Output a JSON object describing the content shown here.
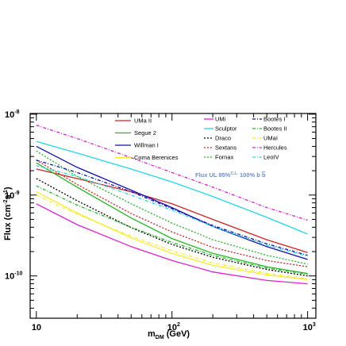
{
  "chart_data": {
    "type": "line",
    "title": "",
    "xlabel": "m",
    "xlabel_sub": "DM",
    "xlabel_unit": " (GeV)",
    "ylabel": "Flux (cm",
    "ylabel_sup1": "-2",
    "ylabel_mid": "s",
    "ylabel_sup2": "-1",
    "ylabel_end": ")",
    "x_scale": "log",
    "y_scale": "log",
    "xlim": [
      9,
      1150
    ],
    "ylim": [
      3e-11,
      1.02e-08
    ],
    "grid": false,
    "legend_placement": "top",
    "x_ticks": [
      {
        "value": 10,
        "base": "10",
        "exp": ""
      },
      {
        "value": 100,
        "base": "10",
        "exp": "2"
      },
      {
        "value": 1000,
        "base": "10",
        "exp": "3"
      }
    ],
    "y_ticks": [
      {
        "value": 1e-10,
        "base": "10",
        "exp": "-10"
      },
      {
        "value": 1e-09,
        "base": "10",
        "exp": "-9"
      },
      {
        "value": 1e-08,
        "base": "10",
        "exp": "-8"
      }
    ],
    "annotation": {
      "text_main": "Flux UL 95%",
      "text_sup": "C.L.",
      "text_tail": " 100% b ",
      "text_bbar": "b"
    },
    "x": [
      10,
      20,
      50,
      100,
      200,
      500,
      1000
    ],
    "series": [
      {
        "name": "UMa II",
        "color": "#d32020",
        "dash": "solid",
        "values": [
          2.1e-09,
          1.6e-09,
          1.1e-09,
          7.8e-10,
          5e-10,
          2.8e-10,
          1.95e-10
        ]
      },
      {
        "name": "Segue 2",
        "color": "#22b822",
        "dash": "solid",
        "values": [
          2.5e-09,
          1.25e-09,
          5.2e-10,
          2.9e-10,
          1.9e-10,
          1.3e-10,
          1.07e-10
        ]
      },
      {
        "name": "Willman I",
        "color": "#1010b0",
        "dash": "solid",
        "values": [
          4e-09,
          2.2e-09,
          1.15e-09,
          7e-10,
          4.1e-10,
          2.3e-10,
          1.6e-10
        ]
      },
      {
        "name": "Coma Berenices",
        "color": "#f4ec2a",
        "dash": "solid",
        "values": [
          1.1e-09,
          6e-10,
          2.95e-10,
          1.9e-10,
          1.35e-10,
          1.03e-10,
          9e-11
        ]
      },
      {
        "name": "UMi",
        "color": "#e020d0",
        "dash": "solid",
        "values": [
          7.8e-10,
          4.3e-10,
          2.3e-10,
          1.55e-10,
          1.12e-10,
          8.8e-11,
          8e-11
        ]
      },
      {
        "name": "Sculptor",
        "color": "#20d8e8",
        "dash": "solid",
        "values": [
          4.6e-09,
          3.3e-09,
          2.1e-09,
          1.45e-09,
          9.6e-10,
          5.3e-10,
          3.3e-10
        ]
      },
      {
        "name": "Draco",
        "color": "#000000",
        "dash": "dotted",
        "values": [
          1.6e-09,
          8.5e-10,
          3.95e-10,
          2.45e-10,
          1.7e-10,
          1.2e-10,
          1e-10
        ]
      },
      {
        "name": "Sextans",
        "color": "#d32020",
        "dash": "dotted",
        "values": [
          2.7e-09,
          1.35e-09,
          5.9e-10,
          3.5e-10,
          2.25e-10,
          1.55e-10,
          1.3e-10
        ]
      },
      {
        "name": "Fornax",
        "color": "#22b822",
        "dash": "dotted",
        "values": [
          3.5e-09,
          1.7e-09,
          7.8e-10,
          4.5e-10,
          2.8e-10,
          1.8e-10,
          1.4e-10
        ]
      },
      {
        "name": "Bootes I",
        "color": "#1010b0",
        "dash": "dashdot",
        "values": [
          2.7e-09,
          1.9e-09,
          1.1e-09,
          6.8e-10,
          4.2e-10,
          2.5e-10,
          1.8e-10
        ]
      },
      {
        "name": "Bootes II",
        "color": "#22b822",
        "dash": "dashdot",
        "values": [
          1.3e-09,
          7.5e-10,
          4e-10,
          2.6e-10,
          1.8e-10,
          1.25e-10,
          1.05e-10
        ]
      },
      {
        "name": "UMaI",
        "color": "#f4ec2a",
        "dash": "dashdot",
        "values": [
          1e-09,
          5.8e-10,
          3.1e-10,
          2.05e-10,
          1.45e-10,
          1.08e-10,
          9.2e-11
        ]
      },
      {
        "name": "Hercules",
        "color": "#e020d0",
        "dash": "dashdot",
        "values": [
          7.3e-09,
          5e-09,
          2.9e-09,
          1.9e-09,
          1.25e-09,
          7e-10,
          4.9e-10
        ]
      },
      {
        "name": "LeoIV",
        "color": "#20d8e8",
        "dash": "dashdot",
        "values": [
          2.3e-09,
          1.7e-09,
          1e-09,
          6.5e-10,
          4.1e-10,
          2.4e-10,
          1.75e-10
        ]
      }
    ],
    "legend_columns": [
      [
        "UMa II",
        "Segue 2",
        "Willman I",
        "Coma Berenices"
      ],
      [
        "UMi",
        "Sculptor",
        "Draco",
        "Sextans",
        "Fornax"
      ],
      [
        "Bootes I",
        "Bootes II",
        "UMaI",
        "Hercules",
        "LeoIV"
      ]
    ]
  }
}
